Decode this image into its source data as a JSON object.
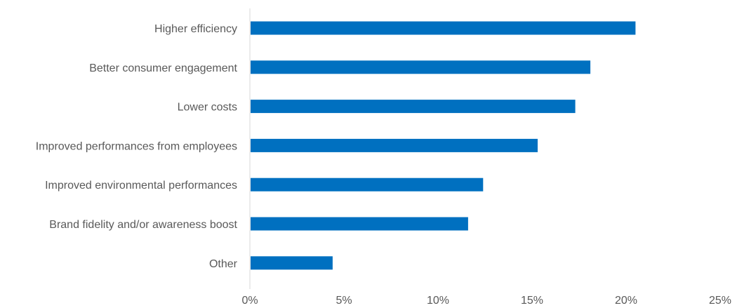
{
  "chart_data": {
    "type": "bar",
    "orientation": "horizontal",
    "title": "",
    "xlabel": "",
    "ylabel": "",
    "categories": [
      "Higher efficiency",
      "Better consumer engagement",
      "Lower costs",
      "Improved performances from employees",
      "Improved environmental performances",
      "Brand fidelity and/or awareness boost",
      "Other"
    ],
    "values": [
      20.5,
      18.1,
      17.3,
      15.3,
      12.4,
      11.6,
      4.4
    ],
    "value_format": "percent",
    "xlim": [
      0,
      25
    ],
    "xticks": [
      0,
      5,
      10,
      15,
      20,
      25
    ],
    "xtick_labels": [
      "0%",
      "5%",
      "10%",
      "15%",
      "20%",
      "25%"
    ],
    "grid": false,
    "legend": "none",
    "colors": {
      "bar": "#0070C0",
      "axis": "#D9D9D9",
      "text": "#595959"
    }
  }
}
